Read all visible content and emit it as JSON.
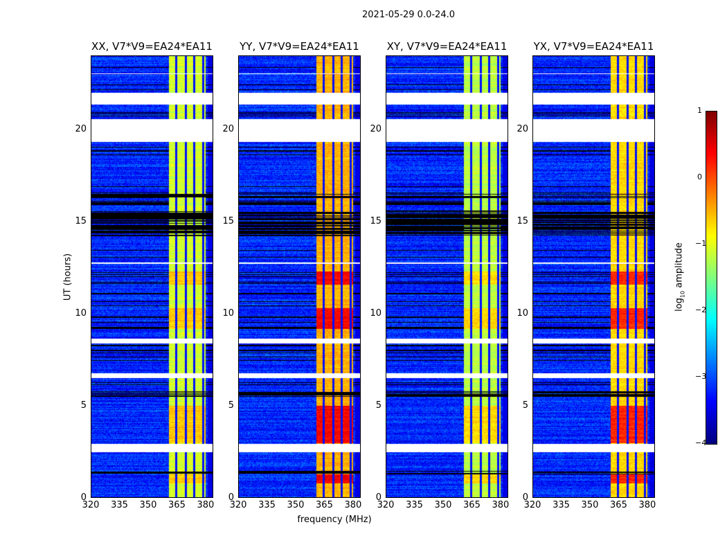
{
  "chart_data": {
    "type": "heatmap",
    "title": "2021-05-29 0.0-24.0",
    "xlabel": "frequency (MHz)",
    "ylabel": "UT (hours)",
    "xlim": [
      320,
      384
    ],
    "ylim": [
      0,
      24
    ],
    "xticks": [
      "320",
      "335",
      "350",
      "365",
      "380"
    ],
    "yticks": [
      "0",
      "5",
      "10",
      "15",
      "20"
    ],
    "colorbar": {
      "label": "log10 amplitude",
      "label_main": "log",
      "label_sub": "10",
      "label_rest": " amplitude",
      "range": [
        -4,
        1
      ],
      "ticks": [
        "1",
        "0",
        "−1",
        "−2",
        "−3",
        "−4"
      ],
      "colormap": "jet"
    },
    "panels": [
      {
        "title": "XX, V7*V9=EA24*EA11",
        "band_level": -1.1
      },
      {
        "title": "YY, V7*V9=EA24*EA11",
        "band_level": -0.5
      },
      {
        "title": "XY, V7*V9=EA24*EA11",
        "band_level": -1.2
      },
      {
        "title": "YX, V7*V9=EA24*EA11",
        "band_level": -0.7
      }
    ],
    "background_level": -3.2,
    "bright_band_mhz": [
      360.5,
      380
    ],
    "masked_channels_mhz": [
      364.5,
      369.5,
      374,
      378.5
    ],
    "flagged_hours": [
      [
        21.35,
        22.0
      ],
      [
        19.33,
        20.56
      ],
      [
        8.4,
        8.65
      ],
      [
        6.52,
        6.78
      ],
      [
        2.51,
        2.96
      ],
      [
        12.7,
        12.8
      ],
      [
        23.0,
        23.05
      ]
    ],
    "rfi_hours": [
      [
        14.2,
        15.6
      ],
      [
        5.5,
        5.8
      ],
      [
        1.3,
        1.5
      ],
      [
        16.3,
        16.5
      ]
    ],
    "hot_hours": [
      [
        11.6,
        12.3
      ],
      [
        3.0,
        5.0
      ],
      [
        0.8,
        1.3
      ],
      [
        9.2,
        10.3
      ]
    ]
  }
}
